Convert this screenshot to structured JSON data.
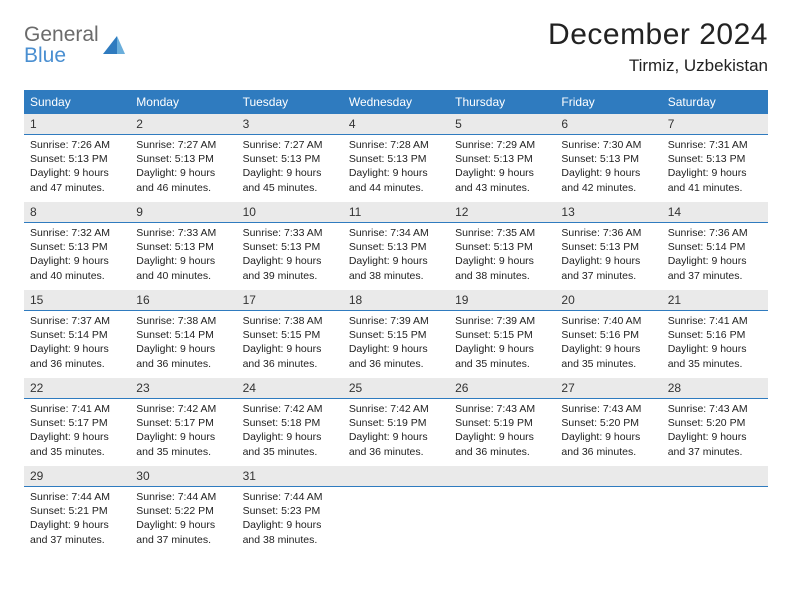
{
  "logo": {
    "word1": "General",
    "word2": "Blue"
  },
  "title": "December 2024",
  "location": "Tirmiz, Uzbekistan",
  "colors": {
    "header_bg": "#2f7bbf",
    "header_text": "#ffffff",
    "daynum_bg": "#eaeaea",
    "daynum_border": "#2f7bbf",
    "logo_gray": "#6b6b6b",
    "logo_blue": "#4a8fd1",
    "text": "#222222"
  },
  "fonts": {
    "title_pt": 30,
    "location_pt": 17,
    "dayhead_pt": 12,
    "body_pt": 10.5
  },
  "day_headers": [
    "Sunday",
    "Monday",
    "Tuesday",
    "Wednesday",
    "Thursday",
    "Friday",
    "Saturday"
  ],
  "weeks": [
    [
      {
        "num": "1",
        "sunrise": "Sunrise: 7:26 AM",
        "sunset": "Sunset: 5:13 PM",
        "day1": "Daylight: 9 hours",
        "day2": "and 47 minutes."
      },
      {
        "num": "2",
        "sunrise": "Sunrise: 7:27 AM",
        "sunset": "Sunset: 5:13 PM",
        "day1": "Daylight: 9 hours",
        "day2": "and 46 minutes."
      },
      {
        "num": "3",
        "sunrise": "Sunrise: 7:27 AM",
        "sunset": "Sunset: 5:13 PM",
        "day1": "Daylight: 9 hours",
        "day2": "and 45 minutes."
      },
      {
        "num": "4",
        "sunrise": "Sunrise: 7:28 AM",
        "sunset": "Sunset: 5:13 PM",
        "day1": "Daylight: 9 hours",
        "day2": "and 44 minutes."
      },
      {
        "num": "5",
        "sunrise": "Sunrise: 7:29 AM",
        "sunset": "Sunset: 5:13 PM",
        "day1": "Daylight: 9 hours",
        "day2": "and 43 minutes."
      },
      {
        "num": "6",
        "sunrise": "Sunrise: 7:30 AM",
        "sunset": "Sunset: 5:13 PM",
        "day1": "Daylight: 9 hours",
        "day2": "and 42 minutes."
      },
      {
        "num": "7",
        "sunrise": "Sunrise: 7:31 AM",
        "sunset": "Sunset: 5:13 PM",
        "day1": "Daylight: 9 hours",
        "day2": "and 41 minutes."
      }
    ],
    [
      {
        "num": "8",
        "sunrise": "Sunrise: 7:32 AM",
        "sunset": "Sunset: 5:13 PM",
        "day1": "Daylight: 9 hours",
        "day2": "and 40 minutes."
      },
      {
        "num": "9",
        "sunrise": "Sunrise: 7:33 AM",
        "sunset": "Sunset: 5:13 PM",
        "day1": "Daylight: 9 hours",
        "day2": "and 40 minutes."
      },
      {
        "num": "10",
        "sunrise": "Sunrise: 7:33 AM",
        "sunset": "Sunset: 5:13 PM",
        "day1": "Daylight: 9 hours",
        "day2": "and 39 minutes."
      },
      {
        "num": "11",
        "sunrise": "Sunrise: 7:34 AM",
        "sunset": "Sunset: 5:13 PM",
        "day1": "Daylight: 9 hours",
        "day2": "and 38 minutes."
      },
      {
        "num": "12",
        "sunrise": "Sunrise: 7:35 AM",
        "sunset": "Sunset: 5:13 PM",
        "day1": "Daylight: 9 hours",
        "day2": "and 38 minutes."
      },
      {
        "num": "13",
        "sunrise": "Sunrise: 7:36 AM",
        "sunset": "Sunset: 5:13 PM",
        "day1": "Daylight: 9 hours",
        "day2": "and 37 minutes."
      },
      {
        "num": "14",
        "sunrise": "Sunrise: 7:36 AM",
        "sunset": "Sunset: 5:14 PM",
        "day1": "Daylight: 9 hours",
        "day2": "and 37 minutes."
      }
    ],
    [
      {
        "num": "15",
        "sunrise": "Sunrise: 7:37 AM",
        "sunset": "Sunset: 5:14 PM",
        "day1": "Daylight: 9 hours",
        "day2": "and 36 minutes."
      },
      {
        "num": "16",
        "sunrise": "Sunrise: 7:38 AM",
        "sunset": "Sunset: 5:14 PM",
        "day1": "Daylight: 9 hours",
        "day2": "and 36 minutes."
      },
      {
        "num": "17",
        "sunrise": "Sunrise: 7:38 AM",
        "sunset": "Sunset: 5:15 PM",
        "day1": "Daylight: 9 hours",
        "day2": "and 36 minutes."
      },
      {
        "num": "18",
        "sunrise": "Sunrise: 7:39 AM",
        "sunset": "Sunset: 5:15 PM",
        "day1": "Daylight: 9 hours",
        "day2": "and 36 minutes."
      },
      {
        "num": "19",
        "sunrise": "Sunrise: 7:39 AM",
        "sunset": "Sunset: 5:15 PM",
        "day1": "Daylight: 9 hours",
        "day2": "and 35 minutes."
      },
      {
        "num": "20",
        "sunrise": "Sunrise: 7:40 AM",
        "sunset": "Sunset: 5:16 PM",
        "day1": "Daylight: 9 hours",
        "day2": "and 35 minutes."
      },
      {
        "num": "21",
        "sunrise": "Sunrise: 7:41 AM",
        "sunset": "Sunset: 5:16 PM",
        "day1": "Daylight: 9 hours",
        "day2": "and 35 minutes."
      }
    ],
    [
      {
        "num": "22",
        "sunrise": "Sunrise: 7:41 AM",
        "sunset": "Sunset: 5:17 PM",
        "day1": "Daylight: 9 hours",
        "day2": "and 35 minutes."
      },
      {
        "num": "23",
        "sunrise": "Sunrise: 7:42 AM",
        "sunset": "Sunset: 5:17 PM",
        "day1": "Daylight: 9 hours",
        "day2": "and 35 minutes."
      },
      {
        "num": "24",
        "sunrise": "Sunrise: 7:42 AM",
        "sunset": "Sunset: 5:18 PM",
        "day1": "Daylight: 9 hours",
        "day2": "and 35 minutes."
      },
      {
        "num": "25",
        "sunrise": "Sunrise: 7:42 AM",
        "sunset": "Sunset: 5:19 PM",
        "day1": "Daylight: 9 hours",
        "day2": "and 36 minutes."
      },
      {
        "num": "26",
        "sunrise": "Sunrise: 7:43 AM",
        "sunset": "Sunset: 5:19 PM",
        "day1": "Daylight: 9 hours",
        "day2": "and 36 minutes."
      },
      {
        "num": "27",
        "sunrise": "Sunrise: 7:43 AM",
        "sunset": "Sunset: 5:20 PM",
        "day1": "Daylight: 9 hours",
        "day2": "and 36 minutes."
      },
      {
        "num": "28",
        "sunrise": "Sunrise: 7:43 AM",
        "sunset": "Sunset: 5:20 PM",
        "day1": "Daylight: 9 hours",
        "day2": "and 37 minutes."
      }
    ],
    [
      {
        "num": "29",
        "sunrise": "Sunrise: 7:44 AM",
        "sunset": "Sunset: 5:21 PM",
        "day1": "Daylight: 9 hours",
        "day2": "and 37 minutes."
      },
      {
        "num": "30",
        "sunrise": "Sunrise: 7:44 AM",
        "sunset": "Sunset: 5:22 PM",
        "day1": "Daylight: 9 hours",
        "day2": "and 37 minutes."
      },
      {
        "num": "31",
        "sunrise": "Sunrise: 7:44 AM",
        "sunset": "Sunset: 5:23 PM",
        "day1": "Daylight: 9 hours",
        "day2": "and 38 minutes."
      },
      null,
      null,
      null,
      null
    ]
  ]
}
